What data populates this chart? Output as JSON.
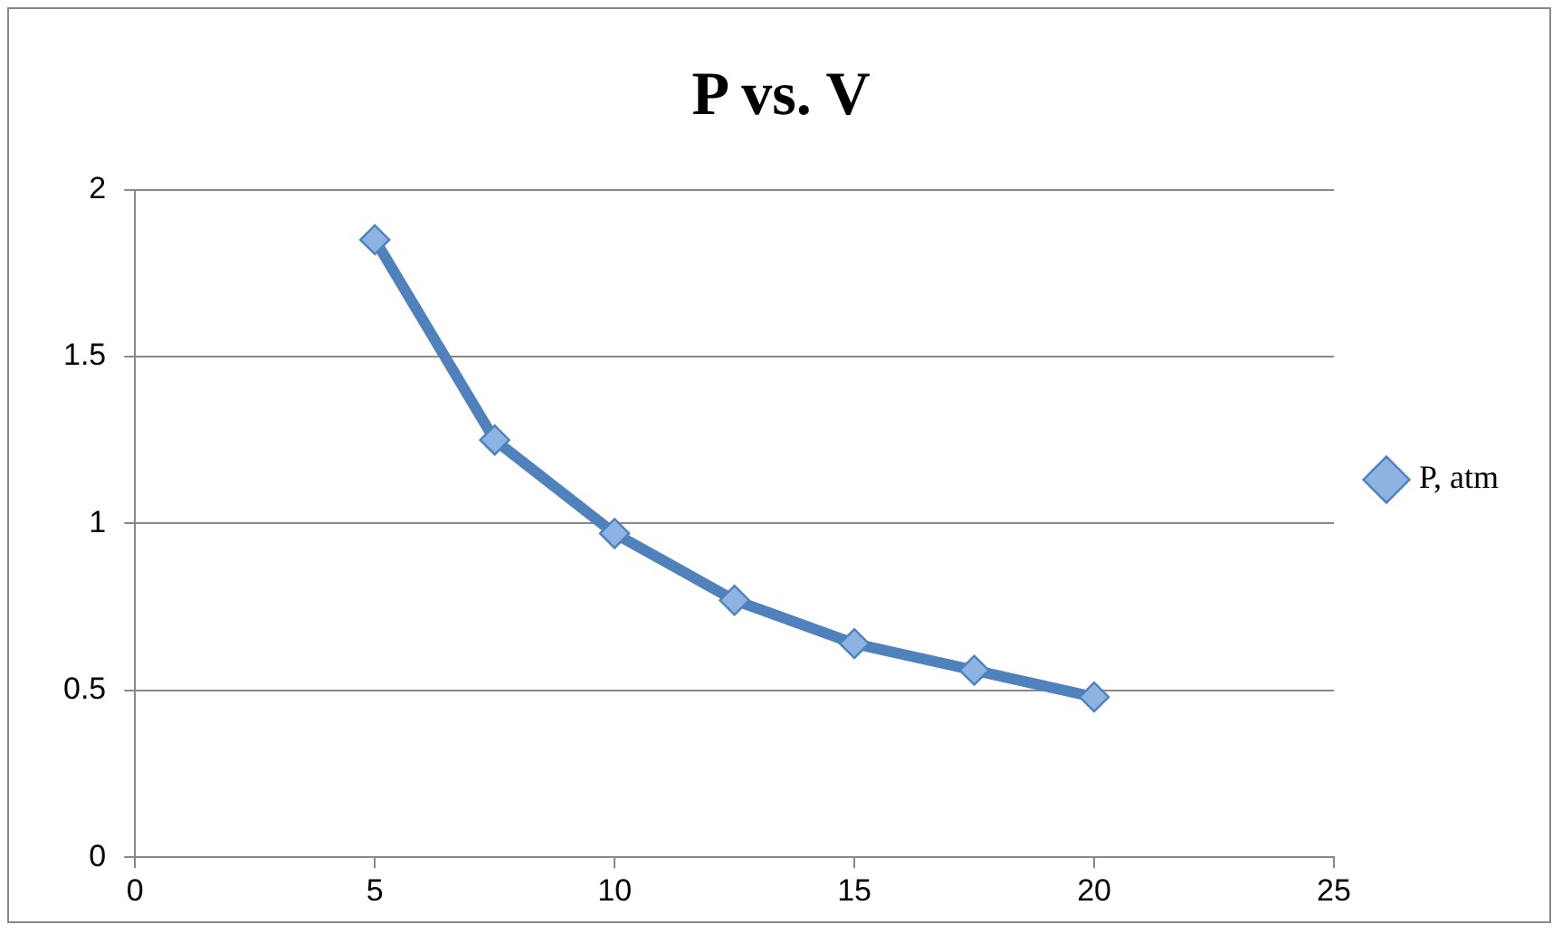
{
  "chart_data": {
    "type": "line",
    "title": "P vs. V",
    "x": [
      5,
      7.5,
      10,
      12.5,
      15,
      17.5,
      20
    ],
    "series": [
      {
        "name": "P, atm",
        "color": "#4f81bd",
        "values": [
          1.85,
          1.25,
          0.97,
          0.77,
          0.64,
          0.56,
          0.48
        ]
      }
    ],
    "xlim": [
      0,
      25
    ],
    "xticks": [
      0,
      5,
      10,
      15,
      20,
      25
    ],
    "ylim": [
      0,
      2
    ],
    "yticks": [
      0,
      0.5,
      1,
      1.5,
      2
    ],
    "grid": "y",
    "legend": "right",
    "marker": "diamond"
  }
}
